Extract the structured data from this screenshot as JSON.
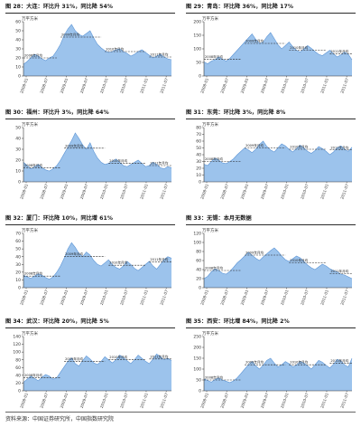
{
  "source": "资料来源：中国证券研究所，中国指数研究院",
  "colors": {
    "area_fill": "#9cc3ec",
    "area_line": "#5d95d5",
    "axis": "#333333",
    "annotation": "#222222"
  },
  "chart_data": [
    {
      "type": "area",
      "title": "图 28：大连：环比升 31%，同比降 54%",
      "ylabel": "万平方米",
      "ylim": [
        0,
        60
      ],
      "yticks": [
        0,
        10,
        20,
        30,
        40,
        50,
        60
      ],
      "xtick_labels": [
        "2008-01",
        "2008-07",
        "2009-01",
        "2009-07",
        "2010-01",
        "2010-07",
        "2011-01",
        "2011-07"
      ],
      "values": [
        13,
        16,
        20,
        24,
        22,
        19,
        17,
        20,
        22,
        28,
        35,
        45,
        52,
        57,
        50,
        46,
        44,
        47,
        50,
        42,
        35,
        31,
        28,
        26,
        27,
        29,
        30,
        27,
        25,
        22,
        24,
        27,
        29,
        26,
        23,
        20,
        22,
        24,
        21,
        19,
        18
      ],
      "mean_lines": [
        {
          "from": 0,
          "to": 9,
          "value": 20,
          "label": "2008年月均"
        },
        {
          "from": 10,
          "to": 21,
          "value": 43,
          "label": "2009年月均"
        },
        {
          "from": 22,
          "to": 33,
          "value": 27,
          "label": "2010年月均"
        },
        {
          "from": 34,
          "to": 40,
          "value": 21,
          "label": "2011年月均"
        }
      ]
    },
    {
      "type": "area",
      "title": "图 29：青岛：环比降 36%，同比降 17%",
      "ylabel": "万平方米",
      "ylim": [
        0,
        200
      ],
      "yticks": [
        0,
        50,
        100,
        150,
        200
      ],
      "xtick_labels": [
        "2008-01",
        "2008-07",
        "2009-01",
        "2009-07",
        "2010-01",
        "2010-07",
        "2011-01",
        "2011-07"
      ],
      "values": [
        52,
        45,
        55,
        60,
        70,
        62,
        55,
        65,
        80,
        95,
        110,
        125,
        140,
        155,
        135,
        120,
        125,
        145,
        160,
        138,
        115,
        100,
        112,
        125,
        108,
        95,
        88,
        100,
        112,
        102,
        90,
        80,
        75,
        85,
        95,
        82,
        70,
        78,
        88,
        80,
        60
      ],
      "mean_lines": [
        {
          "from": 0,
          "to": 10,
          "value": 62,
          "label": "2008年月均"
        },
        {
          "from": 11,
          "to": 22,
          "value": 120,
          "label": "2009年月均"
        },
        {
          "from": 23,
          "to": 33,
          "value": 95,
          "label": "2010年月均"
        },
        {
          "from": 34,
          "to": 40,
          "value": 82,
          "label": "2011年月均"
        }
      ]
    },
    {
      "type": "area",
      "title": "图 30：福州：环比升 3%，同比降 64%",
      "ylabel": "万平方米",
      "ylim": [
        0,
        50
      ],
      "yticks": [
        0,
        10,
        20,
        30,
        40,
        50
      ],
      "xtick_labels": [
        "2008-01",
        "2008-07",
        "2009-01",
        "2009-07",
        "2010-01",
        "2010-07",
        "2011-01",
        "2011-07"
      ],
      "values": [
        18,
        15,
        12,
        14,
        16,
        13,
        11,
        10,
        12,
        15,
        20,
        26,
        32,
        38,
        45,
        40,
        34,
        30,
        36,
        28,
        22,
        18,
        16,
        17,
        19,
        21,
        18,
        15,
        14,
        16,
        18,
        20,
        17,
        14,
        15,
        18,
        16,
        13,
        12,
        14,
        13
      ],
      "mean_lines": [
        {
          "from": 0,
          "to": 10,
          "value": 13,
          "label": "2008年月均"
        },
        {
          "from": 11,
          "to": 22,
          "value": 31,
          "label": "2009年月均"
        },
        {
          "from": 23,
          "to": 33,
          "value": 17,
          "label": "2010年月均"
        },
        {
          "from": 34,
          "to": 40,
          "value": 15,
          "label": "2011年月均"
        }
      ]
    },
    {
      "type": "area",
      "title": "图 31：东莞：环比降 3%，同比降 8%",
      "ylabel": "万平方米",
      "ylim": [
        0,
        80
      ],
      "yticks": [
        0,
        10,
        20,
        30,
        40,
        50,
        60,
        70,
        80
      ],
      "xtick_labels": [
        "2008-01",
        "2008-07",
        "2009-01",
        "2009-07",
        "2010-01",
        "2010-07",
        "2011-01",
        "2011-07"
      ],
      "values": [
        26,
        24,
        30,
        35,
        32,
        28,
        27,
        30,
        34,
        40,
        45,
        50,
        47,
        43,
        48,
        55,
        60,
        52,
        47,
        44,
        50,
        56,
        53,
        48,
        44,
        49,
        54,
        50,
        45,
        42,
        46,
        52,
        49,
        45,
        40,
        44,
        50,
        53,
        48,
        45,
        51
      ],
      "mean_lines": [
        {
          "from": 0,
          "to": 10,
          "value": 30,
          "label": "2008年月均"
        },
        {
          "from": 11,
          "to": 22,
          "value": 50,
          "label": "2009年月均"
        },
        {
          "from": 23,
          "to": 33,
          "value": 48,
          "label": "2010年月均"
        },
        {
          "from": 34,
          "to": 40,
          "value": 47,
          "label": "2011年月均"
        }
      ]
    },
    {
      "type": "area",
      "title": "图 32：厦门：环比降 10%，同比增 61%",
      "ylabel": "万平方米",
      "ylim": [
        0,
        70
      ],
      "yticks": [
        0,
        10,
        20,
        30,
        40,
        50,
        60,
        70
      ],
      "xtick_labels": [
        "2008-01",
        "2008-07",
        "2009-01",
        "2009-07",
        "2010-01",
        "2010-07",
        "2011-01",
        "2011-07"
      ],
      "values": [
        16,
        14,
        12,
        15,
        18,
        16,
        13,
        11,
        14,
        20,
        28,
        38,
        50,
        58,
        52,
        44,
        40,
        46,
        42,
        35,
        30,
        28,
        32,
        36,
        30,
        26,
        24,
        28,
        34,
        30,
        25,
        22,
        26,
        30,
        34,
        28,
        24,
        30,
        36,
        40,
        38
      ],
      "mean_lines": [
        {
          "from": 0,
          "to": 10,
          "value": 15,
          "label": "2008年月均"
        },
        {
          "from": 11,
          "to": 22,
          "value": 40,
          "label": "2009年月均"
        },
        {
          "from": 23,
          "to": 33,
          "value": 29,
          "label": "2010年月均"
        },
        {
          "from": 34,
          "to": 40,
          "value": 33,
          "label": "2011年月均"
        }
      ]
    },
    {
      "type": "area",
      "title": "图 33：无锡：本月无数据",
      "ylabel": "万平方米",
      "ylim": [
        0,
        120
      ],
      "yticks": [
        0,
        20,
        40,
        60,
        80,
        100,
        120
      ],
      "xtick_labels": [
        "2008-01",
        "2008-07",
        "2009-01",
        "2009-07",
        "2010-01",
        "2010-07",
        "2011-01",
        "2011-07"
      ],
      "values": [
        20,
        25,
        35,
        42,
        38,
        32,
        30,
        36,
        45,
        55,
        62,
        70,
        78,
        72,
        65,
        60,
        68,
        75,
        82,
        88,
        80,
        70,
        62,
        58,
        64,
        70,
        66,
        58,
        50,
        44,
        40,
        46,
        52,
        48,
        42,
        38,
        35,
        30,
        28,
        24,
        20
      ],
      "mean_lines": [
        {
          "from": 0,
          "to": 10,
          "value": 38,
          "label": "2008年月均"
        },
        {
          "from": 11,
          "to": 22,
          "value": 72,
          "label": "2009年月均"
        },
        {
          "from": 23,
          "to": 33,
          "value": 55,
          "label": "2010年月均"
        },
        {
          "from": 34,
          "to": 40,
          "value": 31,
          "label": "2011年月均"
        }
      ]
    },
    {
      "type": "area",
      "title": "图 34：武汉：环比降 20%，同比降 5%",
      "ylabel": "万平方米",
      "ylim": [
        0,
        140
      ],
      "yticks": [
        0,
        20,
        40,
        60,
        80,
        100,
        120,
        140
      ],
      "xtick_labels": [
        "2008-01",
        "2008-07",
        "2009-01",
        "2009-07",
        "2010-01",
        "2010-07",
        "2011-01",
        "2011-07"
      ],
      "values": [
        22,
        30,
        38,
        32,
        26,
        35,
        42,
        38,
        30,
        34,
        48,
        62,
        76,
        85,
        70,
        64,
        78,
        90,
        82,
        72,
        68,
        76,
        88,
        80,
        72,
        80,
        92,
        86,
        78,
        70,
        80,
        92,
        84,
        76,
        70,
        82,
        95,
        88,
        80,
        84,
        78
      ],
      "mean_lines": [
        {
          "from": 0,
          "to": 10,
          "value": 34,
          "label": "2008年月均"
        },
        {
          "from": 11,
          "to": 22,
          "value": 76,
          "label": "2009年月均"
        },
        {
          "from": 23,
          "to": 33,
          "value": 80,
          "label": "2010年月均"
        },
        {
          "from": 34,
          "to": 40,
          "value": 82,
          "label": "2011年月均"
        }
      ]
    },
    {
      "type": "area",
      "title": "图 35：西安：环比增 84%，同比降 2%",
      "ylabel": "万平方米",
      "ylim": [
        0,
        250
      ],
      "yticks": [
        0,
        50,
        100,
        150,
        200,
        250
      ],
      "xtick_labels": [
        "2008-01",
        "2008-07",
        "2009-01",
        "2009-07",
        "2010-01",
        "2010-07",
        "2011-01",
        "2011-07"
      ],
      "values": [
        55,
        48,
        40,
        52,
        60,
        50,
        44,
        38,
        46,
        60,
        80,
        100,
        120,
        135,
        115,
        100,
        118,
        140,
        150,
        128,
        110,
        120,
        135,
        125,
        110,
        118,
        135,
        128,
        115,
        100,
        120,
        140,
        132,
        118,
        105,
        122,
        145,
        138,
        120,
        110,
        150
      ],
      "mean_lines": [
        {
          "from": 0,
          "to": 10,
          "value": 50,
          "label": "2008年月均"
        },
        {
          "from": 11,
          "to": 22,
          "value": 120,
          "label": "2009年月均"
        },
        {
          "from": 23,
          "to": 33,
          "value": 120,
          "label": "2010年月均"
        },
        {
          "from": 34,
          "to": 40,
          "value": 127,
          "label": "2011年月均"
        }
      ]
    }
  ]
}
